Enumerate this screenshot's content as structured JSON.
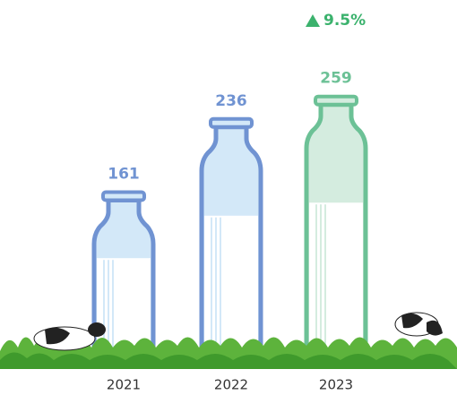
{
  "chart_data": {
    "type": "bottle-bar",
    "categories": [
      "2021",
      "2022",
      "2023"
    ],
    "values": [
      161,
      236,
      259
    ],
    "colors": [
      "#7093d2",
      "#7093d2",
      "#6cc196"
    ],
    "annotation": "9.5%",
    "annotation_color": "#3bb26d"
  }
}
